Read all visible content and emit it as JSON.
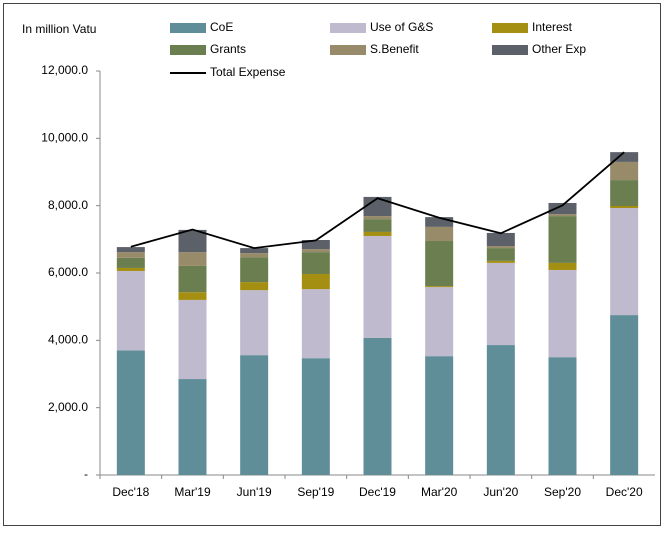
{
  "chart_data": {
    "type": "bar",
    "stacked": true,
    "y_axis_label": "In million Vatu",
    "categories": [
      "Dec'18",
      "Mar'19",
      "Jun'19",
      "Sep'19",
      "Dec'19",
      "Mar'20",
      "Jun'20",
      "Sep'20",
      "Dec'20"
    ],
    "series": [
      {
        "name": "CoE",
        "color": "#5f8e99",
        "values": [
          3700,
          2850,
          3560,
          3470,
          4070,
          3530,
          3860,
          3500,
          4750
        ]
      },
      {
        "name": "Use of G&S",
        "color": "#bfbacd",
        "values": [
          2360,
          2350,
          1930,
          2050,
          3030,
          2050,
          2440,
          2590,
          3180
        ]
      },
      {
        "name": "Interest",
        "color": "#a58f12",
        "values": [
          90,
          230,
          240,
          450,
          120,
          30,
          60,
          210,
          60
        ]
      },
      {
        "name": "Grants",
        "color": "#6b7e4f",
        "values": [
          300,
          780,
          740,
          650,
          380,
          1340,
          380,
          1390,
          770
        ]
      },
      {
        "name": "S.Benefit",
        "color": "#988b6a",
        "values": [
          170,
          410,
          120,
          90,
          90,
          420,
          60,
          60,
          540
        ]
      },
      {
        "name": "Other Exp",
        "color": "#5c6169",
        "values": [
          150,
          660,
          150,
          270,
          570,
          290,
          390,
          330,
          290
        ]
      },
      {
        "name": "Total Expense",
        "color": "#000000",
        "type": "line",
        "values": [
          6780,
          7290,
          6740,
          6970,
          8220,
          7640,
          7180,
          8010,
          9590
        ]
      }
    ],
    "ylim": [
      0,
      12000
    ],
    "yticks": [
      {
        "value": 0,
        "label": "-"
      },
      {
        "value": 2000,
        "label": "2,000.0"
      },
      {
        "value": 4000,
        "label": "4,000.0"
      },
      {
        "value": 6000,
        "label": "6,000.0"
      },
      {
        "value": 8000,
        "label": "8,000.0"
      },
      {
        "value": 10000,
        "label": "10,000.0"
      },
      {
        "value": 12000,
        "label": "12,000.0"
      }
    ],
    "grid": false
  }
}
